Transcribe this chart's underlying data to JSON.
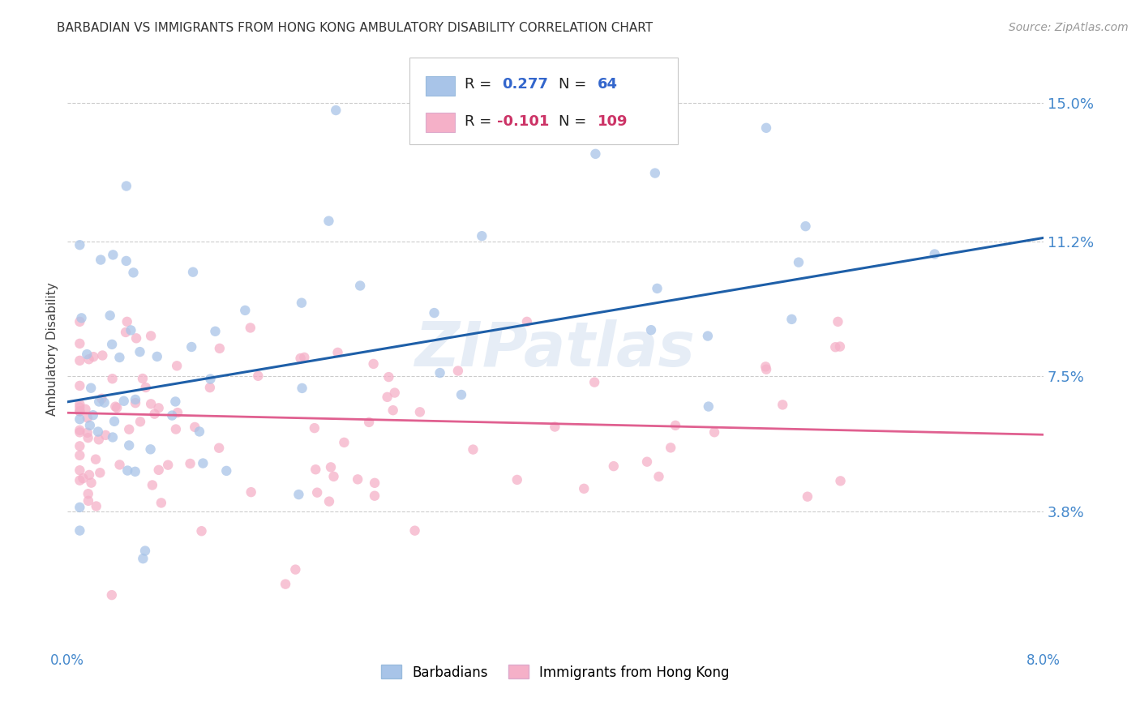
{
  "title": "BARBADIAN VS IMMIGRANTS FROM HONG KONG AMBULATORY DISABILITY CORRELATION CHART",
  "source": "Source: ZipAtlas.com",
  "ylabel": "Ambulatory Disability",
  "yticks": [
    0.038,
    0.075,
    0.112,
    0.15
  ],
  "ytick_labels": [
    "3.8%",
    "7.5%",
    "11.2%",
    "15.0%"
  ],
  "xlim": [
    0.0,
    0.08
  ],
  "ylim": [
    0.0,
    0.165
  ],
  "blue_R": 0.277,
  "blue_N": 64,
  "pink_R": -0.101,
  "pink_N": 109,
  "blue_color": "#a8c4e8",
  "blue_line_color": "#1e5fa8",
  "pink_color": "#f5b0c8",
  "pink_line_color": "#e06090",
  "legend_label_blue": "Barbadians",
  "legend_label_pink": "Immigrants from Hong Kong",
  "watermark": "ZIPatlas",
  "blue_line_x0": 0.0,
  "blue_line_y0": 0.068,
  "blue_line_x1": 0.08,
  "blue_line_y1": 0.113,
  "pink_line_x0": 0.0,
  "pink_line_y0": 0.065,
  "pink_line_x1": 0.08,
  "pink_line_y1": 0.059
}
